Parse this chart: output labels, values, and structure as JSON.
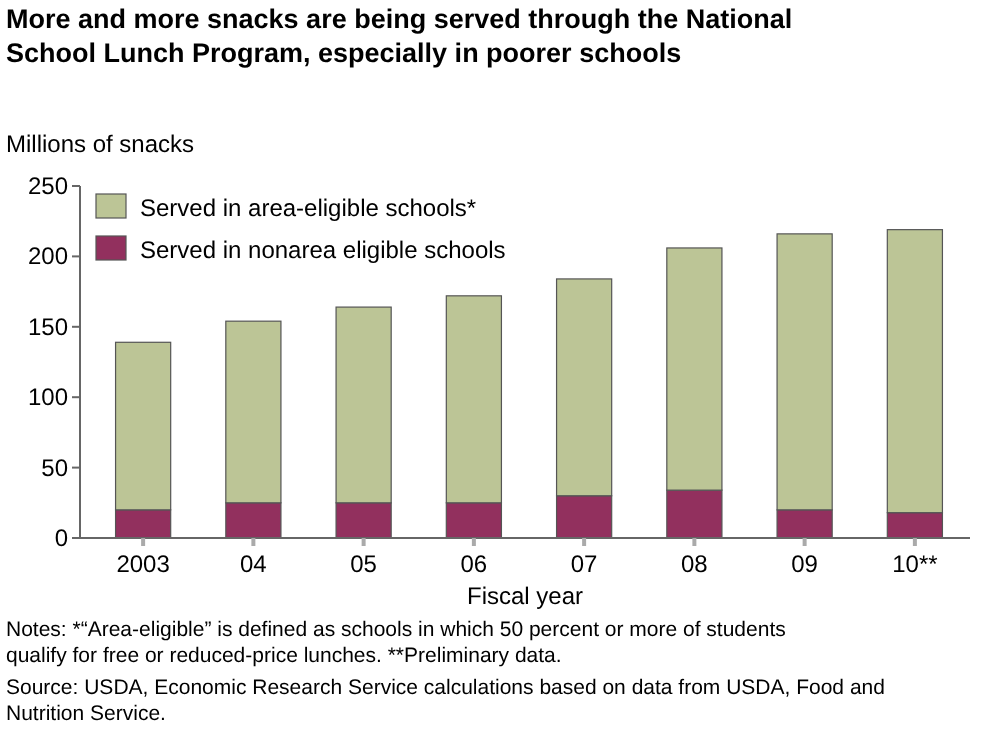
{
  "chart_data": {
    "type": "bar",
    "title": "More and more snacks are being served through the National School Lunch Program, especially in poorer schools",
    "ylabel": "Millions of snacks",
    "xlabel": "Fiscal year",
    "categories": [
      "2003",
      "04",
      "05",
      "06",
      "07",
      "08",
      "09",
      "10**"
    ],
    "stacked": true,
    "legend": "top left",
    "grid": false,
    "ylim": [
      0,
      250
    ],
    "yticks": [
      0,
      50,
      100,
      150,
      200,
      250
    ],
    "series": [
      {
        "name": "Served in nonarea eligible schools",
        "color": "#92305e",
        "values": [
          20,
          25,
          25,
          25,
          30,
          34,
          20,
          18
        ]
      },
      {
        "name": "Served in area-eligible schools*",
        "color": "#bcc596",
        "values": [
          119,
          129,
          139,
          147,
          154,
          172,
          196,
          201
        ]
      }
    ],
    "annotations": [
      "Notes: *“Area-eligible” is defined as schools in which 50 percent or more of students qualify for free or reduced-price lunches. **Preliminary data.",
      "Source: USDA, Economic Research Service calculations based on data from USDA, Food and Nutrition Service."
    ]
  }
}
